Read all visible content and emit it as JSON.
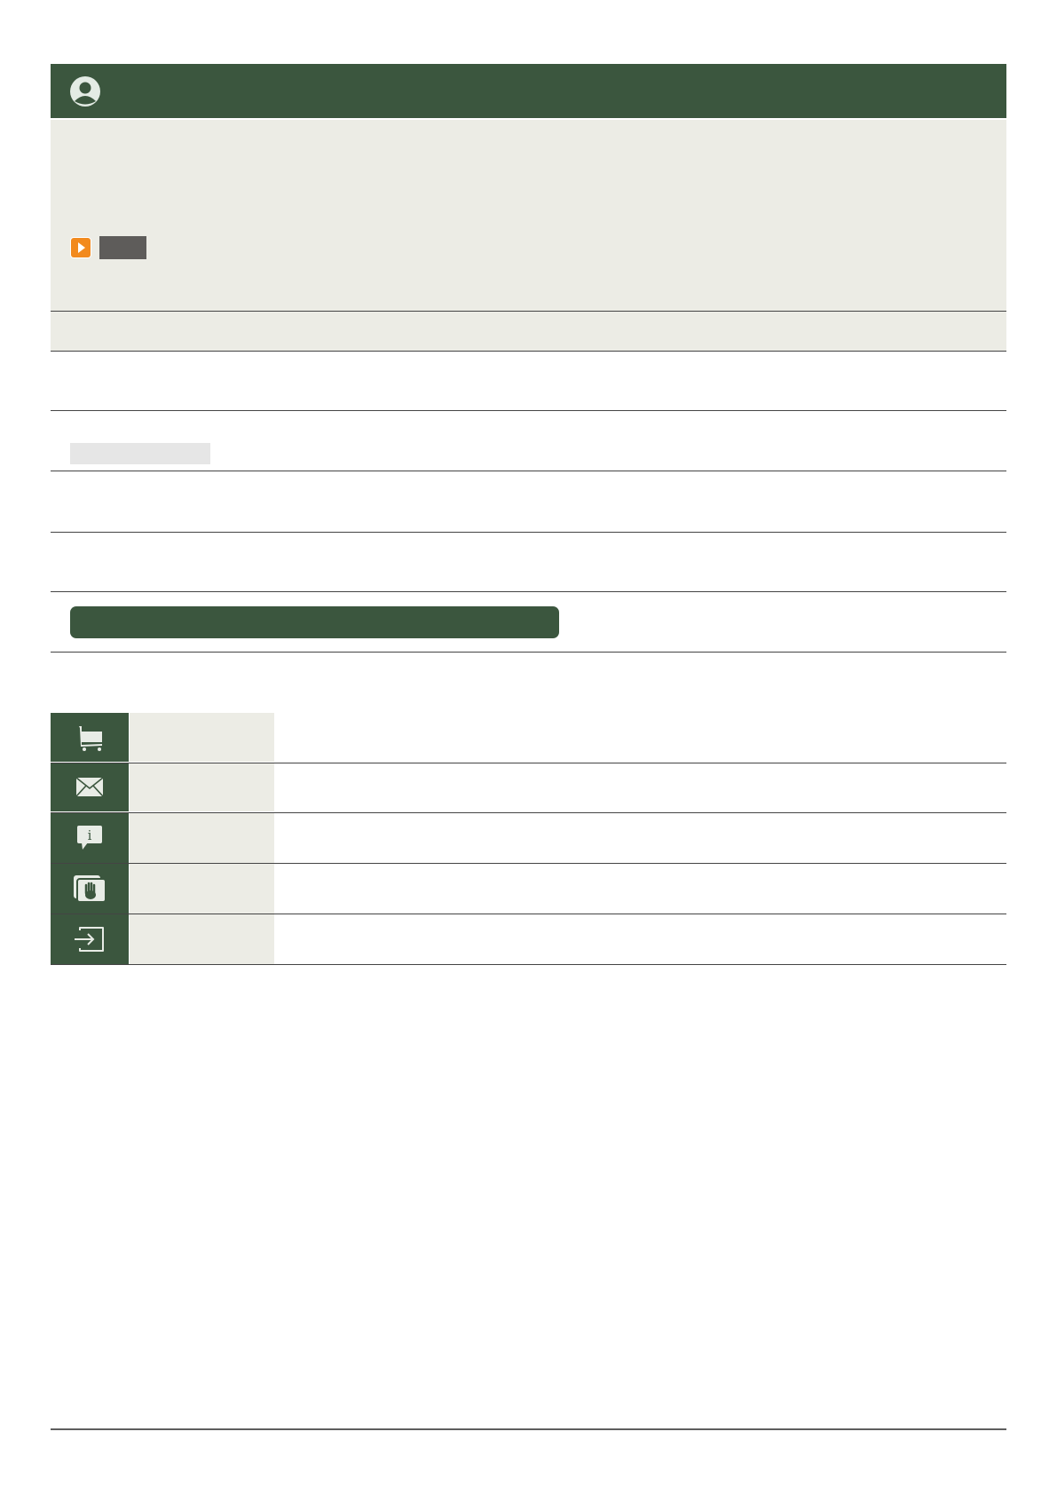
{
  "colors": {
    "primary_green": "#3b563e",
    "panel_bg": "#ecece5",
    "accent_orange": "#f28a1e",
    "dark_gray": "#5e5c5a",
    "divider": "#444444"
  },
  "header": {
    "icon": "user-avatar-icon"
  },
  "panel": {
    "play_icon": "play-icon"
  },
  "menu": {
    "items": [
      {
        "icon": "shopping-cart-icon"
      },
      {
        "icon": "envelope-icon"
      },
      {
        "icon": "info-speech-bubble-icon"
      },
      {
        "icon": "hand-stop-icon"
      },
      {
        "icon": "sign-in-icon"
      }
    ]
  }
}
